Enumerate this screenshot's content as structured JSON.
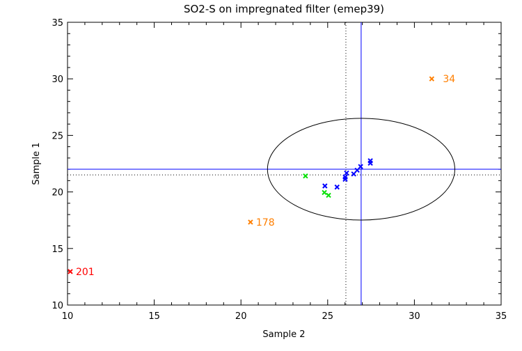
{
  "chart_data": {
    "type": "scatter",
    "title": "SO2-S on impregnated filter (emep39)",
    "xlabel": "Sample 2",
    "ylabel": "Sample 1",
    "xlim": [
      10,
      35
    ],
    "ylim": [
      10,
      35
    ],
    "xticks": [
      "10",
      "15",
      "20",
      "25",
      "30",
      "35"
    ],
    "yticks": [
      "10",
      "15",
      "20",
      "25",
      "30",
      "35"
    ],
    "grid": false,
    "series": [
      {
        "color": "#0000ff",
        "points": [
          [
            24.84,
            20.53
          ],
          [
            25.54,
            20.43
          ],
          [
            26.01,
            21.31
          ],
          [
            26.01,
            21.12
          ],
          [
            26.09,
            21.67
          ],
          [
            26.5,
            21.59
          ],
          [
            26.7,
            21.92
          ],
          [
            26.9,
            22.24
          ],
          [
            27.46,
            22.76
          ],
          [
            27.46,
            22.54
          ]
        ]
      },
      {
        "color": "#00e000",
        "points": [
          [
            23.72,
            21.41
          ],
          [
            24.81,
            19.95
          ],
          [
            25.05,
            19.7
          ]
        ]
      },
      {
        "color": "#ff7f00",
        "points": [
          [
            31.0,
            30.0,
            "34"
          ],
          [
            20.55,
            17.33,
            "178"
          ]
        ]
      },
      {
        "color": "#ff0000",
        "points": [
          [
            10.16,
            12.96,
            "201"
          ]
        ]
      }
    ],
    "reference_lines": {
      "vertical_solid": 26.93,
      "vertical_dotted": 26.05,
      "horizontal_solid": 22.01,
      "horizontal_dotted": 21.51,
      "line_color": "#0000ff"
    },
    "ellipse": {
      "center": [
        26.93,
        22.01
      ],
      "radius_x": 5.4,
      "radius_y": 4.5
    }
  }
}
